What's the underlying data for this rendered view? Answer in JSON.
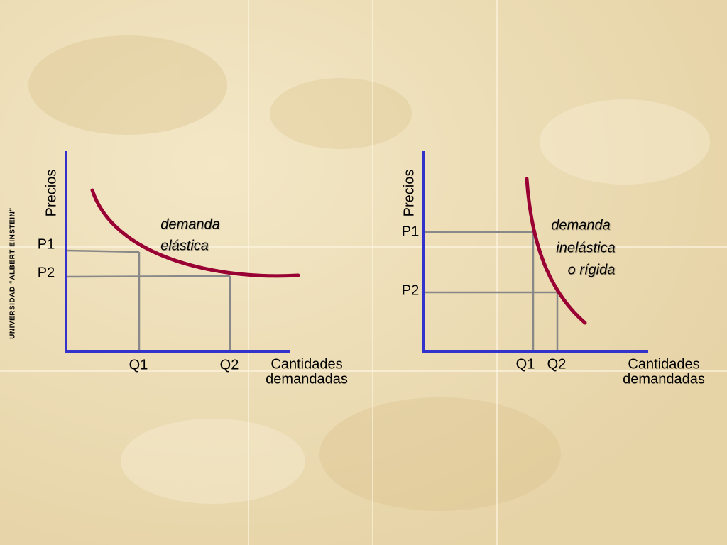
{
  "side_label": "UNIVERSIDAD “ALBERT EINSTEIN”",
  "diagrams": [
    {
      "y_label": "Precios",
      "price_labels": [
        "P1",
        "P2"
      ],
      "quantity_labels": [
        "Q1",
        "Q2"
      ],
      "x_label": [
        "Cantidades",
        "demandadas"
      ],
      "curve_label": [
        "demanda",
        "elástica"
      ]
    },
    {
      "y_label": "Precios",
      "price_labels": [
        "P1",
        "P2"
      ],
      "quantity_labels": [
        "Q1",
        "Q2"
      ],
      "x_label": [
        "Cantidades",
        "demandadas"
      ],
      "curve_label": [
        "demanda",
        "inelástica",
        "o rígida"
      ]
    }
  ]
}
